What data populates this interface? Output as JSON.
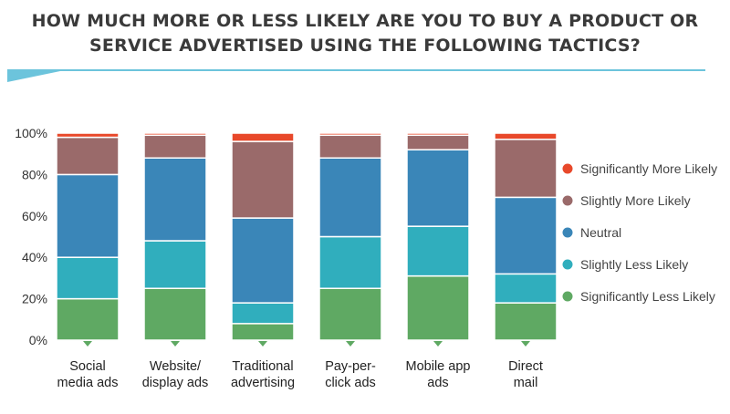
{
  "title": {
    "line1": "HOW MUCH MORE OR LESS LIKELY ARE YOU TO BUY A PRODUCT OR",
    "line2": "SERVICE  ADVERTISED USING THE FOLLOWING TACTICS?"
  },
  "chart_data": {
    "type": "bar",
    "stacked": true,
    "categories": [
      [
        "Social",
        "media ads"
      ],
      [
        "Website/",
        "display ads"
      ],
      [
        "Traditional",
        "advertising"
      ],
      [
        "Pay-per-",
        "click ads"
      ],
      [
        "Mobile app",
        "ads"
      ],
      [
        "Direct",
        "mail"
      ]
    ],
    "series": [
      {
        "name": "Significantly Less Likely",
        "color": "#5fa963",
        "values": [
          20,
          25,
          8,
          25,
          31,
          18
        ]
      },
      {
        "name": "Slightly Less Likely",
        "color": "#30aebd",
        "values": [
          20,
          23,
          10,
          25,
          24,
          14
        ]
      },
      {
        "name": "Neutral",
        "color": "#3a86b8",
        "values": [
          40,
          40,
          41,
          38,
          37,
          37
        ]
      },
      {
        "name": "Slightly More Likely",
        "color": "#9a6a6a",
        "values": [
          18,
          11,
          37,
          11,
          7,
          28
        ]
      },
      {
        "name": "Significantly More Likely",
        "color": "#e8482a",
        "values": [
          2,
          1,
          4,
          1,
          1,
          3
        ]
      }
    ],
    "yticks": [
      "0%",
      "20%",
      "40%",
      "60%",
      "80%",
      "100%"
    ],
    "ylim": [
      0,
      100
    ],
    "legend_order": [
      "Significantly More Likely",
      "Slightly More Likely",
      "Neutral",
      "Slightly Less Likely",
      "Significantly Less Likely"
    ],
    "legend_placement": "right"
  }
}
